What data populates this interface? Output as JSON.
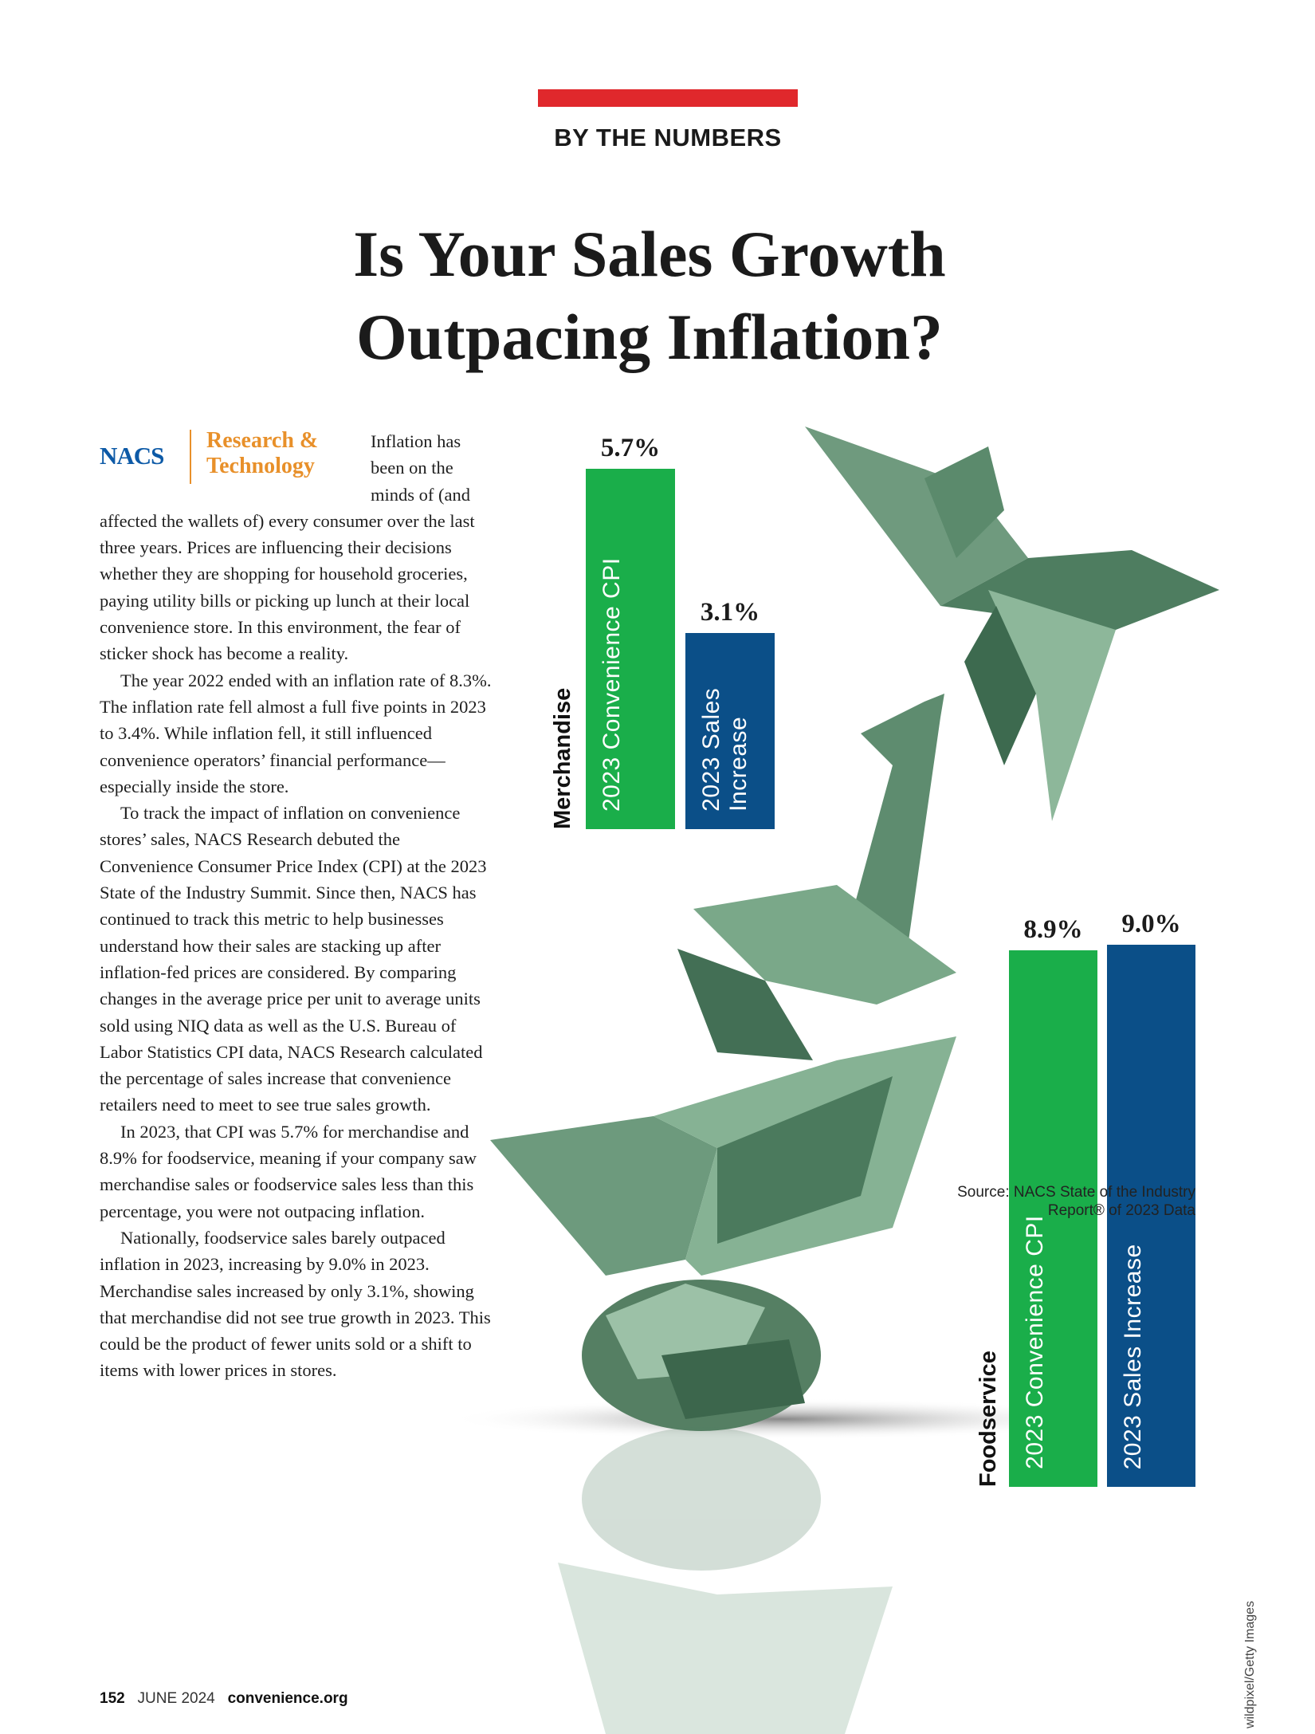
{
  "header": {
    "section": "BY THE NUMBERS",
    "title_lines": [
      "Is Your Sales Growth",
      "Outpacing Inflation?"
    ]
  },
  "logo": {
    "name": "NACS",
    "unit_lines": [
      "Research &",
      "Technology"
    ]
  },
  "body": {
    "paragraphs": [
      "Inflation has been on the minds of (and affected the wallets of) every consumer over the last three years. Prices are influencing their decisions whether they are shopping for household groceries, paying utility bills or picking up lunch at their local convenience store. In this environment, the fear of sticker shock has become a reality.",
      "The year 2022 ended with an inflation rate of 8.3%. The inflation rate fell almost a full five points in 2023 to 3.4%. While inflation fell, it still influenced convenience operators’ financial performance—especially inside the store.",
      "To track the impact of inflation on convenience stores’ sales, NACS Research debuted the Convenience Consumer Price Index (CPI) at the 2023 State of the Industry Summit. Since then, NACS has continued to track this metric to help businesses understand how their sales are stacking up after inflation-fed prices are considered. By comparing changes in the average price per unit to average units sold using NIQ data as well as the U.S. Bureau of Labor Statistics CPI data, NACS Research calculated the percentage of sales increase that convenience retailers need to meet to see true sales growth.",
      "In 2023, that CPI was 5.7% for merchandise and 8.9% for foodservice, meaning if your company saw merchandise sales or foodservice sales less than this percentage, you were not outpacing inflation.",
      "Nationally, foodservice sales barely outpaced inflation in 2023, increasing by 9.0% in 2023. Merchandise sales increased by only 3.1%, showing that merchandise did not see true growth in 2023. This could be the product of fewer units sold or a shift to items with lower prices in stores."
    ]
  },
  "chart_data": [
    {
      "type": "bar",
      "title": "Merchandise",
      "categories": [
        "2023 Convenience CPI",
        "2023 Sales Increase"
      ],
      "values": [
        5.7,
        3.1
      ],
      "value_labels": [
        "5.7%",
        "3.1%"
      ],
      "colors": [
        "#1aae4a",
        "#0b4f88"
      ]
    },
    {
      "type": "bar",
      "title": "Foodservice",
      "categories": [
        "2023 Convenience CPI",
        "2023 Sales Increase"
      ],
      "values": [
        8.9,
        9.0
      ],
      "value_labels": [
        "8.9%",
        "9.0%"
      ],
      "colors": [
        "#1aae4a",
        "#0b4f88"
      ]
    }
  ],
  "source": "Source: NACS State of the Industry Report® of 2023 Data",
  "credit": "wildpixel/Getty Images",
  "footer": {
    "page": "152",
    "issue": "JUNE 2024",
    "site": "convenience.org"
  }
}
